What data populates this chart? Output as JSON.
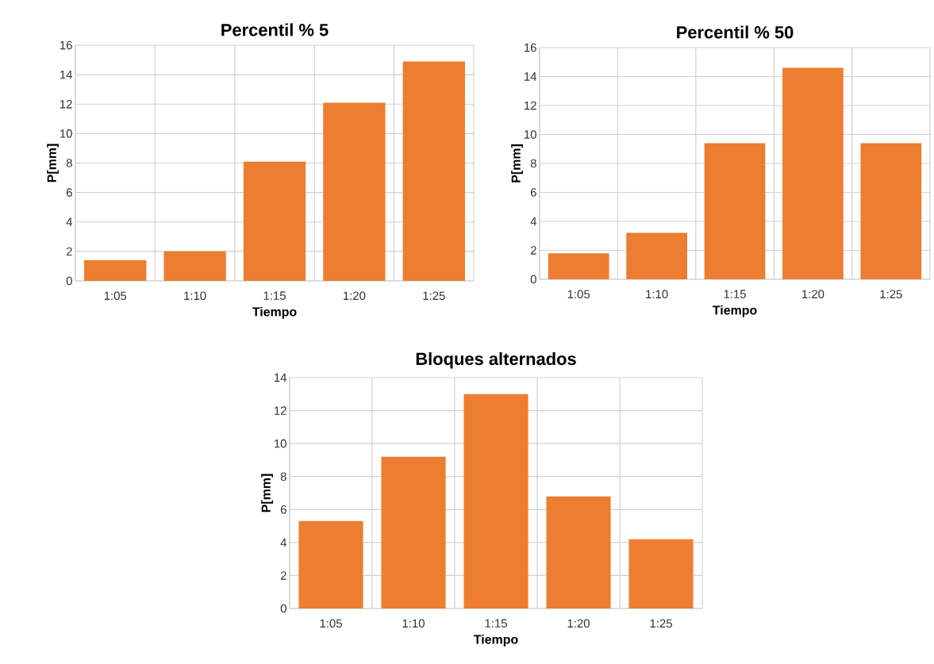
{
  "chart_data": [
    {
      "type": "bar",
      "title": "Percentil % 5",
      "xlabel": "Tiempo",
      "ylabel": "P[mm]",
      "categories": [
        "1:05",
        "1:10",
        "1:15",
        "1:20",
        "1:25"
      ],
      "values": [
        1.4,
        2.0,
        8.1,
        12.1,
        14.9
      ],
      "color": "#ed7d31",
      "ylim": [
        0,
        16
      ],
      "yticks": [
        0,
        2,
        4,
        6,
        8,
        10,
        12,
        14,
        16
      ],
      "grid": true
    },
    {
      "type": "bar",
      "title": "Percentil % 50",
      "xlabel": "Tiempo",
      "ylabel": "P[mm]",
      "categories": [
        "1:05",
        "1:10",
        "1:15",
        "1:20",
        "1:25"
      ],
      "values": [
        1.8,
        3.2,
        9.4,
        14.6,
        9.4
      ],
      "color": "#ed7d31",
      "ylim": [
        0,
        16
      ],
      "yticks": [
        0,
        2,
        4,
        6,
        8,
        10,
        12,
        14,
        16
      ],
      "grid": true
    },
    {
      "type": "bar",
      "title": "Bloques alternados",
      "xlabel": "Tiempo",
      "ylabel": "P[mm]",
      "categories": [
        "1:05",
        "1:10",
        "1:15",
        "1:20",
        "1:25"
      ],
      "values": [
        5.3,
        9.2,
        13.0,
        6.8,
        4.2
      ],
      "color": "#ed7d31",
      "ylim": [
        0,
        14
      ],
      "yticks": [
        0,
        2,
        4,
        6,
        8,
        10,
        12,
        14
      ],
      "grid": true
    }
  ]
}
